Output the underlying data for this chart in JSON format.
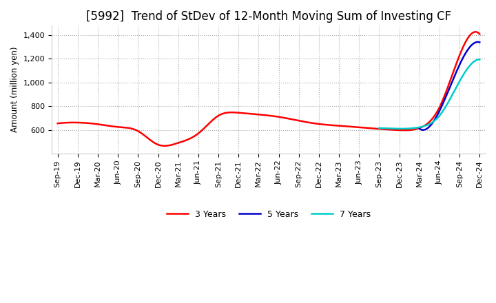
{
  "title": "[5992]  Trend of StDev of 12-Month Moving Sum of Investing CF",
  "ylabel": "Amount (million yen)",
  "ylim": [
    400,
    1480
  ],
  "yticks": [
    600,
    800,
    1000,
    1200,
    1400
  ],
  "x_labels": [
    "Sep-19",
    "Dec-19",
    "Mar-20",
    "Jun-20",
    "Sep-20",
    "Dec-20",
    "Mar-21",
    "Jun-21",
    "Sep-21",
    "Dec-21",
    "Mar-22",
    "Jun-22",
    "Sep-22",
    "Dec-22",
    "Mar-23",
    "Jun-23",
    "Sep-23",
    "Dec-23",
    "Mar-24",
    "Jun-24",
    "Sep-24",
    "Dec-24"
  ],
  "series": {
    "3 Years": {
      "color": "#ff0000",
      "values": [
        655,
        662,
        648,
        625,
        590,
        475,
        490,
        570,
        720,
        745,
        730,
        710,
        678,
        650,
        635,
        622,
        608,
        598,
        615,
        790,
        1230,
        1410
      ]
    },
    "5 Years": {
      "color": "#0000cd",
      "values": [
        null,
        null,
        null,
        null,
        null,
        null,
        null,
        null,
        null,
        null,
        null,
        null,
        null,
        null,
        null,
        null,
        null,
        null,
        610,
        760,
        1150,
        1340
      ]
    },
    "7 Years": {
      "color": "#00cccc",
      "values": [
        null,
        null,
        null,
        null,
        null,
        null,
        null,
        null,
        null,
        null,
        null,
        null,
        null,
        null,
        null,
        null,
        615,
        610,
        622,
        720,
        1010,
        1195
      ]
    },
    "10 Years": {
      "color": "#008000",
      "values": [
        null,
        null,
        null,
        null,
        null,
        null,
        null,
        null,
        null,
        null,
        null,
        null,
        null,
        null,
        null,
        null,
        null,
        null,
        null,
        null,
        null,
        null
      ]
    }
  },
  "background_color": "#ffffff",
  "grid_color": "#aaaaaa",
  "title_fontsize": 12,
  "tick_fontsize": 8,
  "legend_fontsize": 9
}
